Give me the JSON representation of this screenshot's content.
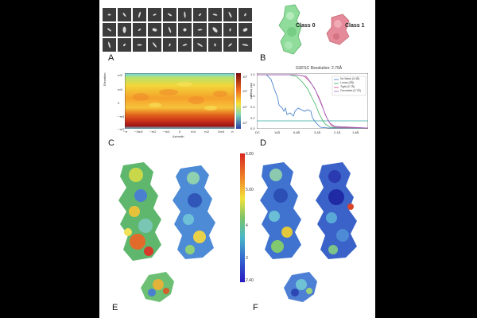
{
  "panels": {
    "a": "A",
    "b": "B",
    "c": "C",
    "d": "D",
    "e": "E",
    "f": "F"
  },
  "panel_b": {
    "class0": "Class 0",
    "class1": "Class 1",
    "class0_color": "#8fdc9b",
    "class1_color": "#e58a98"
  },
  "panel_c": {
    "x_label": "Azimuth",
    "y_label": "Elevation",
    "cbar_label": "# of images",
    "x_ticks": [
      "−π",
      "−3π/4",
      "−π/2",
      "−π/4",
      "0",
      "π/4",
      "π/2",
      "3π/4",
      "π"
    ],
    "y_ticks": [
      "π/2",
      "π/4",
      "0",
      "−π/4",
      "−π/2"
    ],
    "cbar_ticks": [
      "10³",
      "10²",
      "10¹",
      "10⁰"
    ]
  },
  "panel_d": {
    "title": "GSFSC Resolution: 2.75Å",
    "y_ticks": [
      "1.0",
      "0.8",
      "0.6",
      "0.4",
      "0.2",
      "0.0"
    ],
    "x_ticks": [
      "DC",
      "14Å",
      "6.8Å",
      "3.4Å",
      "2.1Å",
      "1.8Å"
    ],
    "legend": [
      "No Mask (3.4Å)",
      "Loose (3Å)",
      "Tight (2.7Å)",
      "Corrected (2.7Å)"
    ],
    "legend_colors": [
      "#3a78c9",
      "#3db05b",
      "#d2488a",
      "#9b5fc0"
    ]
  },
  "colorbar": {
    "ticks": [
      "6.00",
      "5.00",
      "4",
      "3",
      "2.40"
    ]
  }
}
